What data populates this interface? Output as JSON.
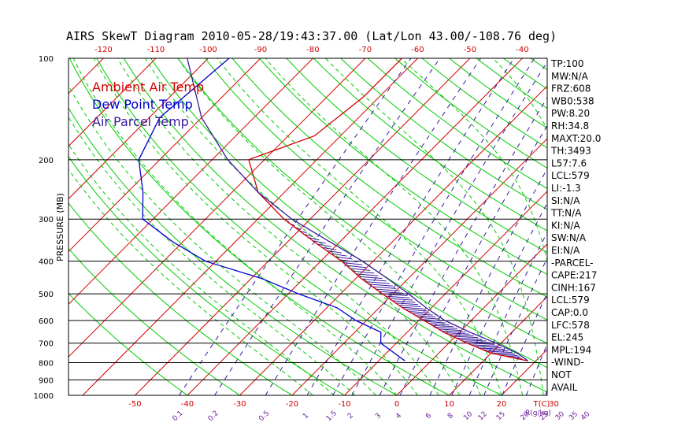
{
  "title": "AIRS SkewT Diagram 2010-05-28/19:43:37.00 (Lat/Lon 43.00/-108.76 deg)",
  "colors": {
    "background": "#ffffff",
    "isotherm": "#d40000",
    "dry_adiabat": "#00cc00",
    "moist_adiabat": "#00cc00",
    "mixing_ratio": "#3a1aa0",
    "temperature": "#d40000",
    "dewpoint": "#0000cc",
    "parcel": "#3a1aa0",
    "isobar": "#000000"
  },
  "chart_data": {
    "type": "line",
    "title": "AIRS SkewT Diagram 2010-05-28/19:43:37.00 (Lat/Lon 43.00/-108.76 deg)",
    "ylabel": "PRESSURE (MB)",
    "xlabel_right": "T(C)",
    "mixing_label": "R(g/kg)",
    "pressure_scale": "log",
    "plim": [
      1000,
      100
    ],
    "pressure_levels": [
      100,
      200,
      300,
      400,
      500,
      600,
      700,
      800,
      900,
      1000
    ],
    "pressure_labels": [
      "100",
      "200",
      "300",
      "400",
      "500",
      "600",
      "700",
      "800",
      "900",
      "1000"
    ],
    "top_temp_ticks": [
      -120,
      -110,
      -100,
      -90,
      -80,
      -70,
      -60,
      -50,
      -40
    ],
    "top_temp_labels": [
      "-120",
      "-110",
      "-100",
      "-90",
      "-80",
      "-70",
      "-60",
      "-50",
      "-40"
    ],
    "bottom_temp_ticks": [
      -50,
      -40,
      -30,
      -20,
      -10,
      0,
      10,
      20,
      30
    ],
    "bottom_temp_labels": [
      "-50",
      "-40",
      "-30",
      "-20",
      "-10",
      "0",
      "10",
      "20",
      "30"
    ],
    "mixing_ratios": [
      0.1,
      0.2,
      0.5,
      1,
      1.5,
      2,
      3,
      4,
      6,
      8,
      10,
      12,
      15,
      20,
      25,
      30,
      35,
      40
    ],
    "mixing_labels": [
      "0.1",
      "0.2",
      "0.5",
      "1",
      "1.5",
      "2",
      "3",
      "4",
      "6",
      "8",
      "10",
      "12",
      "15",
      "20",
      "25",
      "30",
      "35",
      "40"
    ],
    "legend": [
      {
        "label": "Ambient Air Temp",
        "color": "#d40000"
      },
      {
        "label": "Dew Point Temp",
        "color": "#0000cc"
      },
      {
        "label": "Air Parcel Temp",
        "color": "#3a1aa0"
      }
    ],
    "series": [
      {
        "name": "Ambient Air Temp",
        "color": "#d40000",
        "points": [
          [
            100,
            -63
          ],
          [
            130,
            -63
          ],
          [
            170,
            -65
          ],
          [
            200,
            -73
          ],
          [
            250,
            -65
          ],
          [
            300,
            -55
          ],
          [
            350,
            -45
          ],
          [
            400,
            -36
          ],
          [
            450,
            -29
          ],
          [
            500,
            -22
          ],
          [
            550,
            -15.5
          ],
          [
            600,
            -9
          ],
          [
            650,
            -3
          ],
          [
            700,
            3.5
          ],
          [
            750,
            10
          ],
          [
            790,
            18.5
          ]
        ]
      },
      {
        "name": "Dew Point Temp",
        "color": "#0000cc",
        "points": [
          [
            100,
            -96
          ],
          [
            150,
            -98
          ],
          [
            200,
            -94
          ],
          [
            250,
            -87
          ],
          [
            300,
            -82
          ],
          [
            350,
            -72
          ],
          [
            400,
            -62
          ],
          [
            450,
            -48
          ],
          [
            500,
            -38
          ],
          [
            550,
            -28
          ],
          [
            600,
            -22
          ],
          [
            650,
            -15
          ],
          [
            700,
            -13
          ],
          [
            790,
            -5
          ]
        ]
      },
      {
        "name": "Air Parcel Temp",
        "color": "#3a1aa0",
        "points": [
          [
            100,
            -104
          ],
          [
            150,
            -90
          ],
          [
            200,
            -77
          ],
          [
            250,
            -65
          ],
          [
            300,
            -53.5
          ],
          [
            350,
            -42
          ],
          [
            400,
            -32
          ],
          [
            450,
            -24
          ],
          [
            500,
            -17
          ],
          [
            550,
            -11
          ],
          [
            600,
            -5
          ],
          [
            650,
            2
          ],
          [
            700,
            9
          ],
          [
            750,
            15
          ],
          [
            790,
            18.5
          ]
        ]
      }
    ],
    "indices": [
      "TP:100",
      "MW:N/A",
      "FRZ:608",
      "WB0:538",
      "PW:8.20",
      "RH:34.8",
      "MAXT:20.0",
      "TH:3493",
      "L57:7.6",
      "LCL:579",
      "LI:-1.3",
      "SI:N/A",
      "TT:N/A",
      "KI:N/A",
      "SW:N/A",
      "EI:N/A",
      "-PARCEL-",
      "CAPE:217",
      "CINH:167",
      "LCL:579",
      "CAP:0.0",
      "LFC:578",
      "EL:245",
      "MPL:194",
      "-WIND-",
      "NOT",
      "AVAIL"
    ]
  }
}
